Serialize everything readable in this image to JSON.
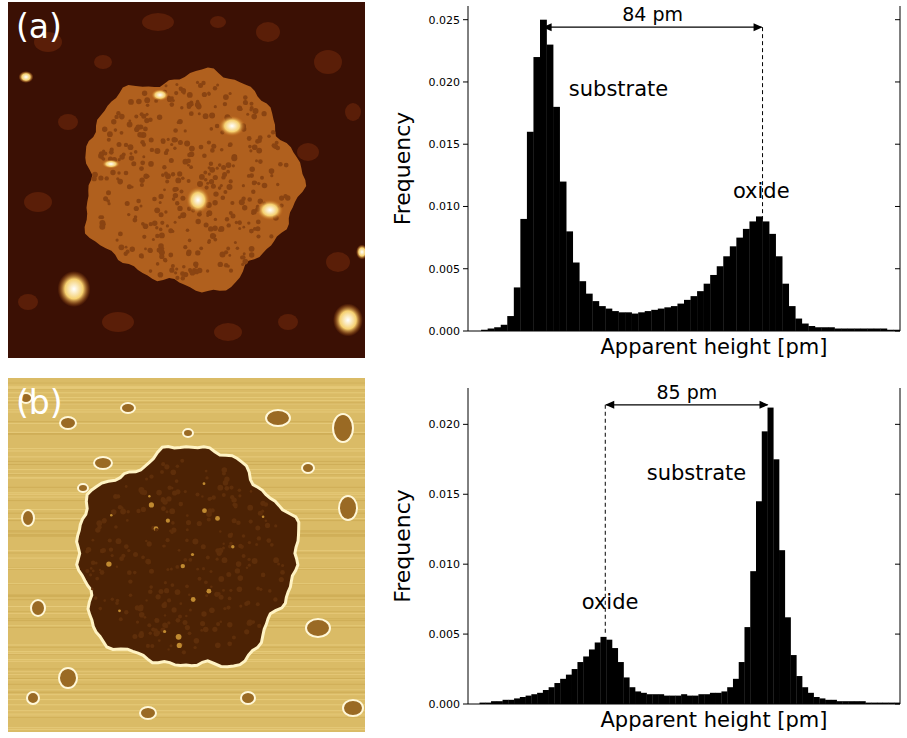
{
  "chart_data": [
    {
      "type": "histogram",
      "panel": "(a)",
      "xlabel": "Apparent height [pm]",
      "ylabel": "Frequency",
      "color": "#000000",
      "bins": [
        0,
        2.5,
        5,
        7.5,
        10,
        12.5,
        15,
        17.5,
        20,
        22.5,
        25,
        27.5,
        30,
        32.5,
        35,
        37.5,
        40,
        42.5,
        45,
        47.5,
        50,
        52.5,
        55,
        57.5,
        60,
        62.5,
        65,
        67.5,
        70,
        72.5,
        75,
        77.5,
        80,
        82.5,
        85,
        87.5,
        90,
        92.5,
        95,
        97.5,
        100,
        102.5,
        105,
        107.5,
        110,
        112.5,
        115,
        117.5,
        120,
        122.5,
        125,
        127.5,
        130,
        132.5,
        135,
        137.5,
        140,
        142.5,
        145,
        147.5,
        150,
        152.5,
        155,
        157.5,
        160,
        162.5,
        165
      ],
      "values": [
        0,
        0,
        0.0001,
        0.0002,
        0.0003,
        0.0005,
        0.0012,
        0.0035,
        0.009,
        0.016,
        0.022,
        0.025,
        0.023,
        0.018,
        0.012,
        0.008,
        0.0055,
        0.004,
        0.003,
        0.0024,
        0.002,
        0.0018,
        0.0016,
        0.0015,
        0.0015,
        0.0014,
        0.0015,
        0.0016,
        0.0017,
        0.0018,
        0.0019,
        0.002,
        0.0022,
        0.0025,
        0.0028,
        0.0032,
        0.0038,
        0.0045,
        0.0052,
        0.006,
        0.0068,
        0.0075,
        0.0082,
        0.0088,
        0.0092,
        0.0088,
        0.0078,
        0.006,
        0.0038,
        0.002,
        0.001,
        0.0006,
        0.0004,
        0.0003,
        0.0003,
        0.0003,
        0.0002,
        0.0002,
        0.0002,
        0.0002,
        0.0002,
        0.0002,
        0.0002,
        0.0002,
        0.0001,
        0.0001
      ],
      "xlim": [
        0,
        165
      ],
      "ylim": [
        0,
        0.0261
      ],
      "yticks": [
        {
          "value": 0,
          "label": "0.000"
        },
        {
          "value": 0.005,
          "label": "0.005"
        },
        {
          "value": 0.01,
          "label": "0.010"
        },
        {
          "value": 0.015,
          "label": "0.015"
        },
        {
          "value": 0.02,
          "label": "0.020"
        },
        {
          "value": 0.025,
          "label": "0.025"
        }
      ],
      "tick_labels": "y",
      "annotations": [
        {
          "text": "84 pm",
          "x": [
            28.5,
            112.5
          ],
          "y": 0.0244
        },
        {
          "text": "substrate",
          "x": 57.5,
          "y": 0.0189
        },
        {
          "text": "oxide",
          "x": 112,
          "y": 0.0107
        }
      ]
    },
    {
      "type": "histogram",
      "panel": "(b)",
      "xlabel": "Apparent height [pm]",
      "ylabel": "Frequency",
      "color": "#000000",
      "bins": [
        0,
        3,
        6,
        9,
        12,
        15,
        18,
        21,
        24,
        27,
        30,
        33,
        36,
        39,
        42,
        45,
        48,
        51,
        54,
        57,
        60,
        63,
        66,
        69,
        72,
        75,
        78,
        81,
        84,
        87,
        90,
        93,
        96,
        99,
        102,
        105,
        108,
        111,
        114,
        117,
        120,
        123,
        126,
        129,
        132,
        135,
        138,
        141,
        144,
        147,
        150,
        153,
        156,
        159,
        162,
        165,
        168,
        171,
        174,
        177,
        180,
        183,
        186,
        189,
        192,
        195,
        198,
        201,
        204,
        207,
        210,
        213,
        216,
        219,
        222,
        225
      ],
      "values": [
        0,
        0,
        0.0001,
        0.0001,
        0.0002,
        0.0002,
        0.0003,
        0.0003,
        0.0004,
        0.0005,
        0.0006,
        0.0007,
        0.0008,
        0.001,
        0.0012,
        0.0015,
        0.0018,
        0.0021,
        0.0025,
        0.003,
        0.0034,
        0.0039,
        0.0044,
        0.0048,
        0.0046,
        0.004,
        0.003,
        0.0019,
        0.0012,
        0.0009,
        0.0008,
        0.0007,
        0.0007,
        0.0007,
        0.0006,
        0.0006,
        0.0006,
        0.0007,
        0.0006,
        0.0006,
        0.0007,
        0.0007,
        0.0008,
        0.0008,
        0.0009,
        0.0012,
        0.0018,
        0.003,
        0.0055,
        0.0095,
        0.0145,
        0.0195,
        0.0212,
        0.0175,
        0.011,
        0.0062,
        0.0035,
        0.002,
        0.0012,
        0.0008,
        0.0005,
        0.0004,
        0.0003,
        0.0003,
        0.0002,
        0.0002,
        0.0002,
        0.0002,
        0.0002,
        0.0001,
        0.0001,
        0.0001,
        0.0001,
        0.0001,
        0.0001
      ],
      "xlim": [
        0,
        225
      ],
      "ylim": [
        0,
        0.0226
      ],
      "yticks": [
        {
          "value": 0,
          "label": "0.000"
        },
        {
          "value": 0.005,
          "label": "0.005"
        },
        {
          "value": 0.01,
          "label": "0.010"
        },
        {
          "value": 0.015,
          "label": "0.015"
        },
        {
          "value": 0.02,
          "label": "0.020"
        }
      ],
      "tick_labels": "y",
      "annotations": [
        {
          "text": "85 pm",
          "x": [
            71.5,
            156.5
          ],
          "y": 0.0214
        },
        {
          "text": "oxide",
          "x": 74,
          "y": 0.0068
        },
        {
          "text": "substrate",
          "x": 119,
          "y": 0.016
        }
      ]
    }
  ]
}
